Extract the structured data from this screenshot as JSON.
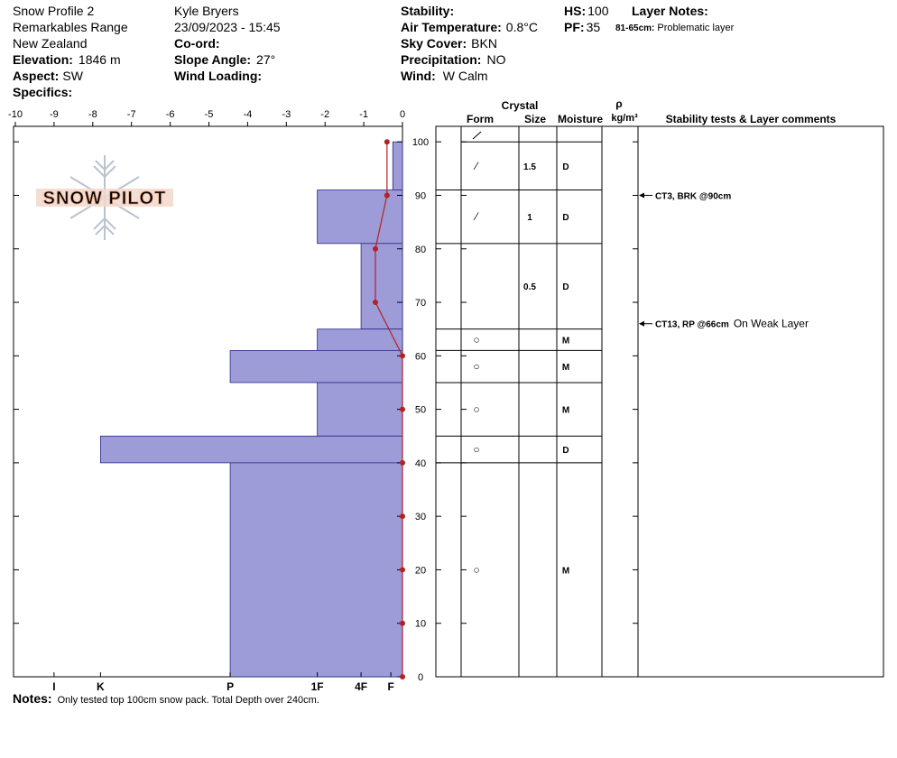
{
  "header": {
    "title": "Snow Profile 2",
    "range": "Remarkables Range",
    "country": "New Zealand",
    "elevation": {
      "label": "Elevation:",
      "value": "1846 m"
    },
    "aspect": {
      "label": "Aspect:",
      "value": "SW"
    },
    "specifics": {
      "label": "Specifics:"
    },
    "observer": "Kyle Bryers",
    "datetime": "23/09/2023 - 15:45",
    "coord": {
      "label": "Co-ord:"
    },
    "slope_angle": {
      "label": "Slope Angle:",
      "value": "27°"
    },
    "wind_loading": {
      "label": "Wind Loading:"
    },
    "stability": {
      "label": "Stability:"
    },
    "air_temperature": {
      "label": "Air Temperature:",
      "value": "0.8°C"
    },
    "sky_cover": {
      "label": "Sky Cover:",
      "value": "BKN"
    },
    "precipitation": {
      "label": "Precipitation:",
      "value": "NO"
    },
    "wind": {
      "label": "Wind:",
      "value": "W Calm"
    },
    "hs": {
      "label": "HS:",
      "value": "100"
    },
    "pf": {
      "label": "PF:",
      "value": "35"
    },
    "layer_notes": {
      "label": "Layer Notes:",
      "range": "81-65cm:",
      "text": "Problematic layer"
    }
  },
  "logo": "SNOW PILOT",
  "chart_data": {
    "type": "snow-profile",
    "xlim": [
      -10,
      0
    ],
    "xticks": [
      -10,
      -9,
      -8,
      -7,
      -6,
      -5,
      -4,
      -3,
      -2,
      -1,
      0
    ],
    "ylim": [
      0,
      102.9
    ],
    "yticks": [
      0,
      10,
      20,
      30,
      40,
      50,
      60,
      70,
      80,
      90,
      100
    ],
    "hardness_ticks": [
      {
        "value": -9,
        "label": "I"
      },
      {
        "value": -7.8,
        "label": "K"
      },
      {
        "value": -4.45,
        "label": "P"
      },
      {
        "value": -2.2,
        "label": "1F"
      },
      {
        "value": -1.07,
        "label": "4F"
      },
      {
        "value": -0.3,
        "label": "F"
      }
    ],
    "bar_color": "#9d9bd8",
    "layers": [
      {
        "top": 100,
        "bottom": 91,
        "hardness": -0.25,
        "form": "⁄",
        "size": 1.5,
        "moisture": "D"
      },
      {
        "top": 91,
        "bottom": 81,
        "hardness": -2.2,
        "form": "⁄",
        "size": 1,
        "moisture": "D"
      },
      {
        "top": 81,
        "bottom": 65,
        "hardness": -1.07,
        "form": null,
        "size": 0.5,
        "moisture": "D"
      },
      {
        "top": 65,
        "bottom": 61,
        "hardness": -2.2,
        "form": "○",
        "size": null,
        "moisture": "M"
      },
      {
        "top": 61,
        "bottom": 55,
        "hardness": -4.45,
        "form": "○",
        "size": null,
        "moisture": "M"
      },
      {
        "top": 55,
        "bottom": 45,
        "hardness": -2.2,
        "form": "○",
        "size": null,
        "moisture": "M"
      },
      {
        "top": 45,
        "bottom": 40,
        "hardness": -7.8,
        "form": "○",
        "size": null,
        "moisture": "D"
      },
      {
        "top": 40,
        "bottom": 0,
        "hardness": -4.45,
        "form": "○",
        "size": null,
        "moisture": "M"
      }
    ],
    "temperature": {
      "color": "#b22222",
      "depths": [
        100,
        90,
        80,
        70,
        60,
        50,
        40,
        30,
        20,
        10,
        0
      ],
      "values": [
        -0.4,
        -0.4,
        -0.7,
        -0.7,
        0,
        0,
        0,
        0,
        0,
        0,
        0
      ]
    },
    "table_headers": {
      "crystal": "Crystal",
      "form": "Form",
      "size": "Size",
      "moisture": "Moisture",
      "rho": "ρ",
      "density_unit": "kg/m³",
      "comments": "Stability tests & Layer comments"
    },
    "tests": [
      {
        "depth": 90,
        "text": "CT3, BRK @90cm",
        "comment": null
      },
      {
        "depth": 66,
        "text": "CT13, RP @66cm",
        "comment": "On Weak Layer"
      }
    ]
  },
  "notes": {
    "label": "Notes:",
    "text": "Only tested top 100cm snow pack. Total Depth over 240cm."
  }
}
